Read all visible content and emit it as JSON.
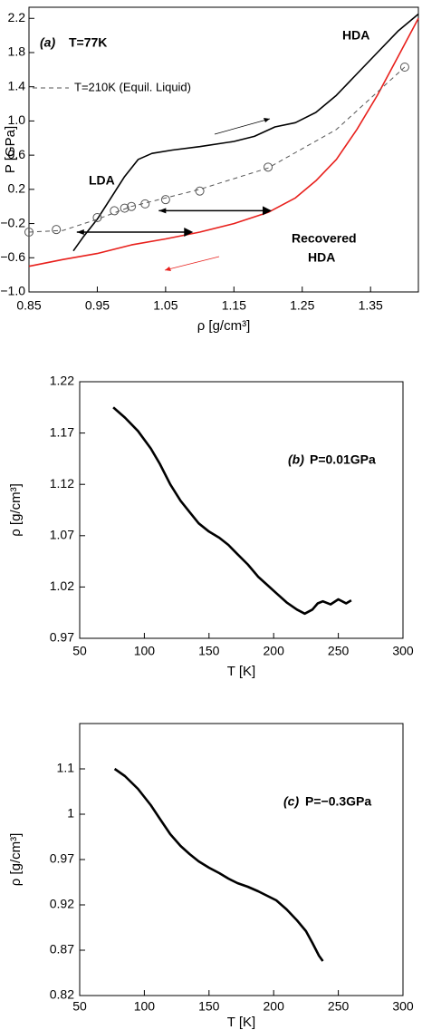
{
  "chart_data": [
    {
      "type": "line",
      "xlabel": "ρ [g/cm³]",
      "ylabel": "P [GPa]",
      "xlim": [
        0.85,
        1.42
      ],
      "ylim": [
        -1.0,
        2.33
      ],
      "xticks": [
        0.85,
        0.95,
        1.05,
        1.15,
        1.25,
        1.35
      ],
      "yticks": [
        {
          "value": -1.0,
          "label": "−1.0"
        },
        {
          "value": -0.6,
          "label": "−0.6"
        },
        {
          "value": -0.2,
          "label": "−0.2"
        },
        0.2,
        0.6,
        {
          "value": 1.0,
          "label": "1.0"
        },
        1.4,
        1.8,
        2.2
      ],
      "annotations": [
        "(a)",
        "T=77K",
        "HDA",
        "LDA",
        "Recovered",
        "HDA"
      ],
      "series": [
        {
          "color": "#000000",
          "x": [
            0.915,
            0.93,
            0.95,
            0.97,
            0.99,
            1.01,
            1.03,
            1.06,
            1.1,
            1.15,
            1.18,
            1.21,
            1.24,
            1.27,
            1.3,
            1.33,
            1.36,
            1.39,
            1.42
          ],
          "values": [
            -0.52,
            -0.35,
            -0.15,
            0.1,
            0.35,
            0.55,
            0.62,
            0.66,
            0.7,
            0.76,
            0.82,
            0.93,
            0.98,
            1.1,
            1.3,
            1.55,
            1.8,
            2.05,
            2.25
          ]
        },
        {
          "color": "#e8201c",
          "x": [
            0.85,
            0.9,
            0.95,
            1.0,
            1.05,
            1.1,
            1.15,
            1.2,
            1.24,
            1.27,
            1.3,
            1.33,
            1.36,
            1.39,
            1.42
          ],
          "values": [
            -0.7,
            -0.62,
            -0.55,
            -0.45,
            -0.38,
            -0.3,
            -0.2,
            -0.07,
            0.1,
            0.3,
            0.55,
            0.9,
            1.3,
            1.75,
            2.2
          ]
        },
        {
          "name": "T=210K (Equil. Liquid)",
          "color": "#555555",
          "dash": true,
          "x": [
            0.85,
            0.9,
            0.95,
            1.0,
            1.05,
            1.1,
            1.2,
            1.3,
            1.4
          ],
          "values": [
            -0.3,
            -0.28,
            -0.15,
            0.0,
            0.1,
            0.2,
            0.45,
            0.9,
            1.63
          ]
        },
        {
          "color": "#555555",
          "marker": "circle",
          "x": [
            0.85,
            0.89,
            0.95,
            0.975,
            0.99,
            1.0,
            1.02,
            1.05,
            1.1,
            1.2,
            1.4
          ],
          "values": [
            -0.3,
            -0.27,
            -0.13,
            -0.05,
            -0.02,
            0.0,
            0.03,
            0.08,
            0.18,
            0.46,
            1.63
          ]
        }
      ],
      "arrows": [
        {
          "x": [
            1.2,
            1.04
          ],
          "y": [
            -0.05,
            -0.05
          ]
        },
        {
          "x": [
            1.085,
            0.92
          ],
          "y": [
            -0.3,
            -0.3
          ]
        }
      ]
    },
    {
      "type": "line",
      "xlabel": "T [K]",
      "ylabel": "ρ [g/cm³]",
      "xlim": [
        50,
        300
      ],
      "ylim": [
        0.97,
        1.22
      ],
      "xticks": [
        50,
        100,
        150,
        200,
        250,
        300
      ],
      "yticks": [
        0.97,
        1.02,
        1.07,
        1.12,
        1.17,
        1.22
      ],
      "annotations": [
        "(b)",
        "P=0.01GPa"
      ],
      "series": [
        {
          "color": "#000000",
          "x": [
            76,
            85,
            95,
            105,
            112,
            120,
            128,
            135,
            142,
            150,
            158,
            165,
            172,
            180,
            188,
            195,
            202,
            210,
            218,
            224,
            230,
            234,
            238,
            244,
            250,
            256,
            260
          ],
          "values": [
            1.195,
            1.185,
            1.172,
            1.155,
            1.14,
            1.12,
            1.104,
            1.093,
            1.082,
            1.074,
            1.068,
            1.061,
            1.052,
            1.042,
            1.03,
            1.022,
            1.014,
            1.005,
            0.998,
            0.994,
            0.998,
            1.004,
            1.006,
            1.003,
            1.008,
            1.004,
            1.007
          ]
        }
      ]
    },
    {
      "type": "line",
      "xlabel": "T [K]",
      "ylabel": "ρ [g/cm³]",
      "xlim": [
        50,
        300
      ],
      "ylim": [
        0.82,
        1.12
      ],
      "xticks": [
        50,
        100,
        150,
        200,
        250,
        300
      ],
      "yticks": [
        0.82,
        0.87,
        0.92,
        0.97,
        {
          "value": 1.02,
          "label": "1"
        },
        {
          "value": 1.07,
          "label": "1.1"
        }
      ],
      "annotations": [
        "(c)",
        "P=−0.3GPa"
      ],
      "series": [
        {
          "color": "#000000",
          "x": [
            77,
            85,
            95,
            105,
            112,
            120,
            128,
            135,
            142,
            150,
            158,
            165,
            172,
            180,
            188,
            195,
            202,
            210,
            218,
            225,
            230,
            235,
            238
          ],
          "values": [
            1.07,
            1.062,
            1.048,
            1.03,
            1.015,
            0.998,
            0.985,
            0.976,
            0.968,
            0.961,
            0.955,
            0.949,
            0.944,
            0.94,
            0.935,
            0.93,
            0.925,
            0.915,
            0.903,
            0.891,
            0.878,
            0.864,
            0.858
          ]
        }
      ]
    }
  ]
}
